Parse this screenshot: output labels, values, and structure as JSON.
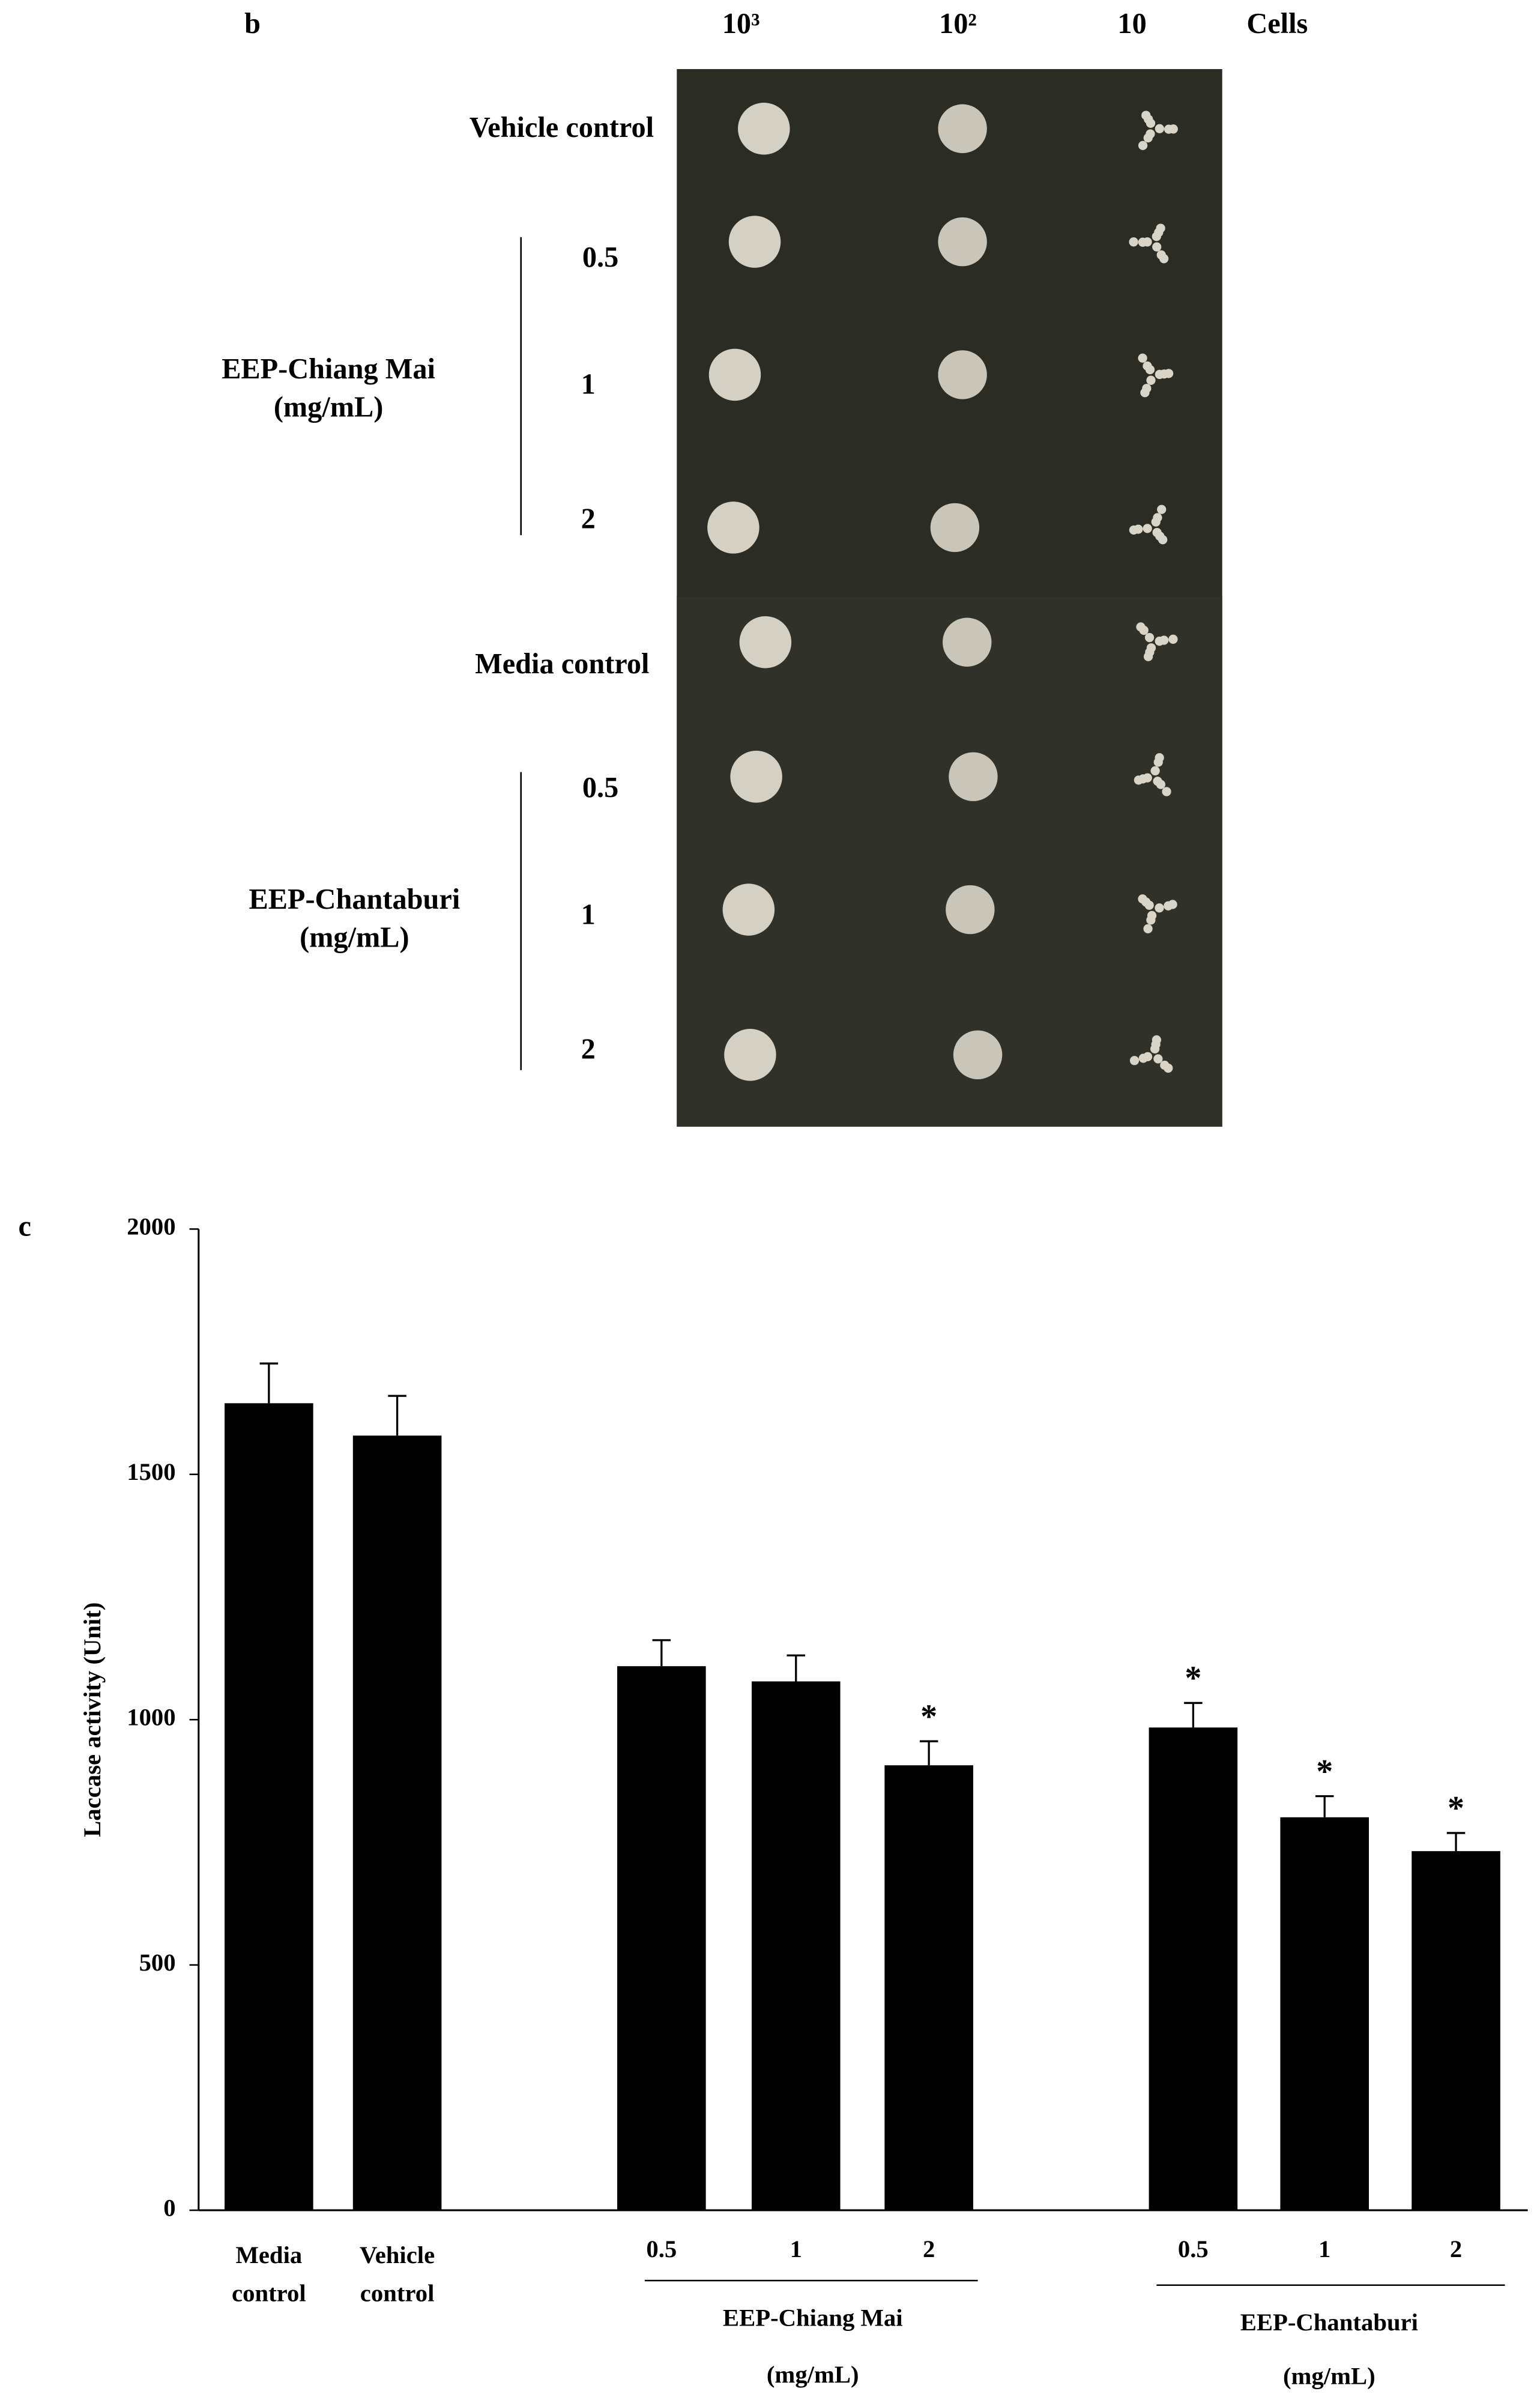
{
  "panel_b": {
    "label": "b",
    "columns": [
      "10³",
      "10²",
      "10",
      "Cells"
    ],
    "rows": [
      "Vehicle control",
      "0.5",
      "1",
      "2",
      "Media control",
      "0.5",
      "1",
      "2"
    ],
    "groups": [
      {
        "name": "EEP-Chiang Mai",
        "unit": "(mg/mL)"
      },
      {
        "name": "EEP-Chantaburi",
        "unit": "(mg/mL)"
      }
    ]
  },
  "chart_data": {
    "type": "bar",
    "panel_label": "c",
    "y_label": "Laccase activity (Unit)",
    "categories": [
      "Media control",
      "Vehicle control",
      "0.5",
      "1",
      "2",
      "0.5",
      "1",
      "2"
    ],
    "values": [
      1645,
      1579,
      1109,
      1078,
      907,
      984,
      801,
      732
    ],
    "errors": [
      81,
      81,
      53,
      53,
      49,
      50,
      43,
      37
    ],
    "significance": [
      null,
      null,
      null,
      null,
      "*",
      "*",
      "*",
      "*"
    ],
    "groups": [
      {
        "name": "EEP-Chiang Mai",
        "unit": "(mg/mL)"
      },
      {
        "name": "EEP-Chantaburi",
        "unit": "(mg/mL)"
      }
    ],
    "color": "#000000",
    "ylim": [
      0,
      2000
    ],
    "yticks": [
      0,
      500,
      1000,
      1500,
      2000
    ]
  }
}
